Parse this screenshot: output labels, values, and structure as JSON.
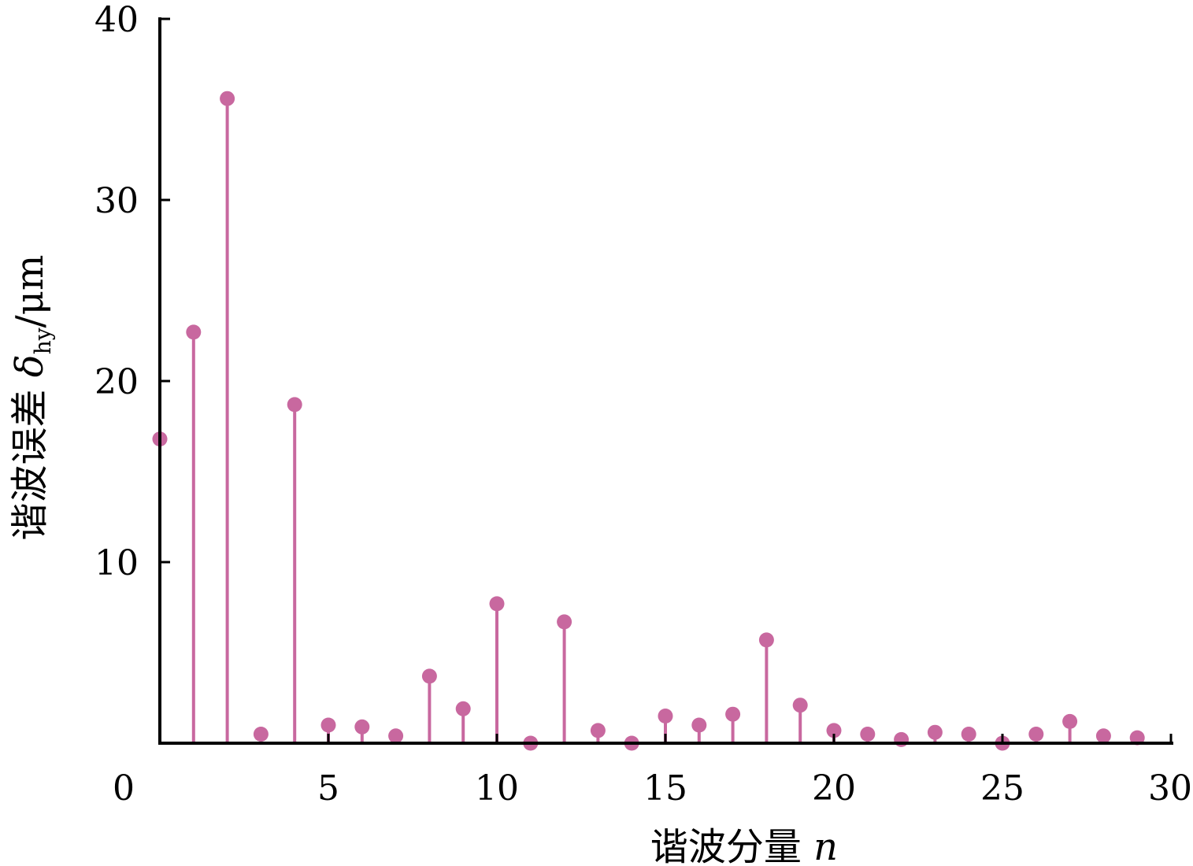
{
  "chart_data": {
    "type": "stem",
    "color": "#c8689f",
    "xlabel": "谐波分量",
    "xlabel_var": "n",
    "ylabel": "谐波误差",
    "ylabel_symbol": "δ",
    "ylabel_subscript": "hy",
    "ylabel_unit": "/μm",
    "xlim": [
      0,
      30
    ],
    "ylim": [
      0,
      40
    ],
    "x_ticks": [
      0,
      5,
      10,
      15,
      20,
      25,
      30
    ],
    "y_ticks": [
      10,
      20,
      30,
      40
    ],
    "grid": false,
    "x": [
      0,
      1,
      2,
      3,
      4,
      5,
      6,
      7,
      8,
      9,
      10,
      11,
      12,
      13,
      14,
      15,
      16,
      17,
      18,
      19,
      20,
      21,
      22,
      23,
      24,
      25,
      26,
      27,
      28,
      29
    ],
    "values": [
      16.8,
      22.7,
      35.6,
      0.5,
      18.7,
      1.0,
      0.9,
      0.4,
      3.7,
      1.9,
      7.7,
      0.0,
      6.7,
      0.7,
      0.0,
      1.5,
      1.0,
      1.6,
      5.7,
      2.1,
      0.7,
      0.5,
      0.2,
      0.6,
      0.5,
      0.0,
      0.5,
      1.2,
      0.4,
      0.3
    ]
  }
}
